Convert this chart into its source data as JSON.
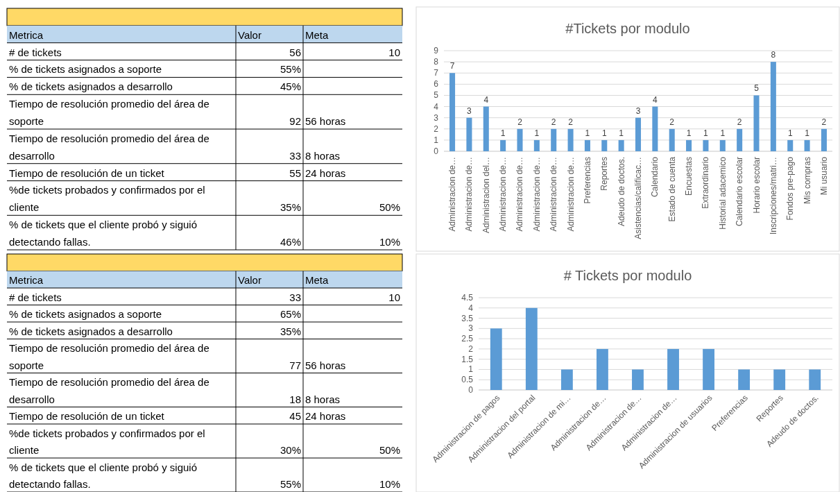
{
  "chart_data": [
    {
      "type": "other",
      "categories": [
        "Metrica",
        "Valor",
        "Meta"
      ],
      "cell_labels": [
        [
          "# de tickets",
          "56",
          "10"
        ],
        [
          "% de tickets asignados a soporte",
          "55%",
          null
        ],
        [
          "% de tickets asignados a desarrollo",
          "45%",
          null
        ],
        [
          "Tiempo de resolución promedio del área de soporte",
          "92",
          "56 horas"
        ],
        [
          "Tiempo de resolución promedio del área de desarrollo",
          "33",
          "8 horas"
        ],
        [
          "Tiempo de resolución de un ticket",
          "55",
          "24 horas"
        ],
        [
          "%de tickets probados y confirmados por el cliente",
          "35%",
          "50%"
        ],
        [
          "% de tickets que el cliente probó y siguió detectando fallas.",
          "46%",
          "10%"
        ]
      ]
    },
    {
      "type": "bar",
      "title": "#Tickets por modulo",
      "categories": [
        "Administracion de…",
        "Administracion de…",
        "Administracion del…",
        "Administracion de…",
        "Administracion de…",
        "Administracion de…",
        "Administracion de…",
        "Administracion de…",
        "Preferencias",
        "Reportes",
        "Adeudo de doctos.",
        "Asistencias/calificac…",
        "Calendario",
        "Estado de cuenta",
        "Encuestas",
        "Extraordinario",
        "Historial adacemico",
        "Calendario escolar",
        "Horario escolar",
        "Inscripciones/matri…",
        "Fondos pre-pago",
        "Mis compras",
        "Mi usuario"
      ],
      "values": [
        7,
        3,
        4,
        1,
        2,
        1,
        2,
        2,
        1,
        1,
        1,
        3,
        4,
        2,
        1,
        1,
        1,
        2,
        5,
        8,
        1,
        1,
        2
      ],
      "color": "#5b9bd5",
      "ylim": [
        0,
        9
      ],
      "yticks": [
        0,
        1,
        2,
        3,
        4,
        5,
        6,
        7,
        8,
        9
      ],
      "grid": "y",
      "data_labels": true
    },
    {
      "type": "other",
      "categories": [
        "Metrica",
        "Valor",
        "Meta"
      ],
      "cell_labels": [
        [
          "# de tickets",
          "33",
          "10"
        ],
        [
          "% de tickets asignados a soporte",
          "65%",
          null
        ],
        [
          "% de tickets asignados a desarrollo",
          "35%",
          null
        ],
        [
          "Tiempo de resolución promedio del área de soporte",
          "77",
          "56 horas"
        ],
        [
          "Tiempo de resolución promedio del área de desarrollo",
          "18",
          "8 horas"
        ],
        [
          "Tiempo de resolución de un ticket",
          "45",
          "24 horas"
        ],
        [
          "%de tickets probados y confirmados por el cliente",
          "30%",
          "50%"
        ],
        [
          "% de tickets que el cliente probó y siguió detectando fallas.",
          "55%",
          "10%"
        ]
      ]
    },
    {
      "type": "bar",
      "title": "# Tickets por modulo",
      "categories": [
        "Administracion de pagos",
        "Administracion del portal",
        "Administracion de mi…",
        "Administracion de…",
        "Administracion de…",
        "Administracion de…",
        "Administracion de usuarios",
        "Preferencias",
        "Reportes",
        "Adeudo de doctos."
      ],
      "values": [
        3,
        4,
        1,
        2,
        1,
        2,
        2,
        1,
        1,
        1
      ],
      "color": "#5b9bd5",
      "ylim": [
        0,
        4.5
      ],
      "yticks": [
        0,
        0.5,
        1,
        1.5,
        2,
        2.5,
        3,
        3.5,
        4,
        4.5
      ],
      "grid": "y"
    }
  ]
}
